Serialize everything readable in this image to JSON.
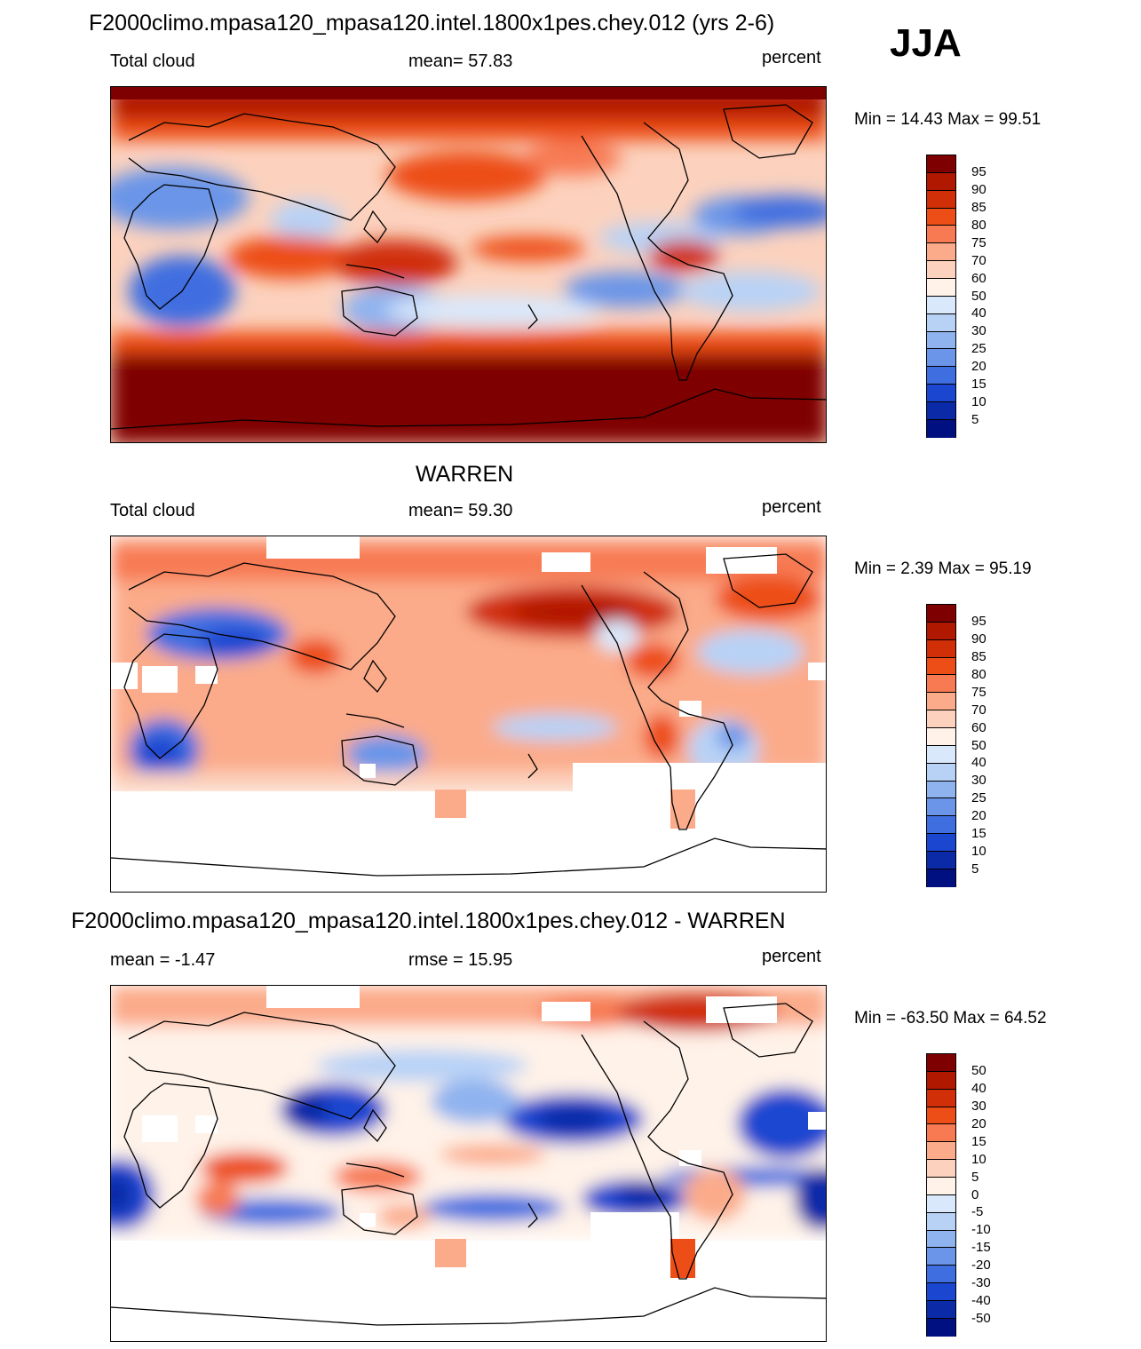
{
  "season": "JJA",
  "colors": {
    "abs_scale": [
      "#7f0000",
      "#b11800",
      "#d02f08",
      "#ed4d17",
      "#f77a52",
      "#fbab8a",
      "#fcd2be",
      "#fff2e8",
      "#d9e8fb",
      "#b8d2f6",
      "#8fb3ef",
      "#6a95e8",
      "#3f6ee0",
      "#1b47d0",
      "#0b2aa8",
      "#001080"
    ],
    "diff_scale": [
      "#7f0000",
      "#b11800",
      "#d02f08",
      "#ed4d17",
      "#f77a52",
      "#fbab8a",
      "#fcd2be",
      "#fff2e8",
      "#d9e8fb",
      "#b8d2f6",
      "#8fb3ef",
      "#6a95e8",
      "#3f6ee0",
      "#1b47d0",
      "#0b2aa8",
      "#001080"
    ]
  },
  "panels": [
    {
      "title": "F2000climo.mpasa120_mpasa120.intel.1800x1pes.chey.012 (yrs 2-6)",
      "left_label": "Total cloud",
      "center_label": "mean=  57.83",
      "units": "percent",
      "minmax": "Min =  14.43 Max =  99.51",
      "colorbar_labels": [
        "95",
        "90",
        "85",
        "80",
        "75",
        "70",
        "60",
        "50",
        "40",
        "30",
        "25",
        "20",
        "15",
        "10",
        "5"
      ]
    },
    {
      "title": "WARREN",
      "left_label": "Total cloud",
      "center_label": "mean=  59.30",
      "units": "percent",
      "minmax": "Min =   2.39 Max =  95.19",
      "colorbar_labels": [
        "95",
        "90",
        "85",
        "80",
        "75",
        "70",
        "60",
        "50",
        "40",
        "30",
        "25",
        "20",
        "15",
        "10",
        "5"
      ]
    },
    {
      "title": "F2000climo.mpasa120_mpasa120.intel.1800x1pes.chey.012 - WARREN",
      "left_label": "mean =  -1.47",
      "center_label": "rmse =  15.95",
      "units": "percent",
      "minmax": "Min = -63.50 Max =  64.52",
      "colorbar_labels": [
        "50",
        "40",
        "30",
        "20",
        "15",
        "10",
        "5",
        "0",
        "-5",
        "-10",
        "-15",
        "-20",
        "-30",
        "-40",
        "-50"
      ]
    }
  ]
}
